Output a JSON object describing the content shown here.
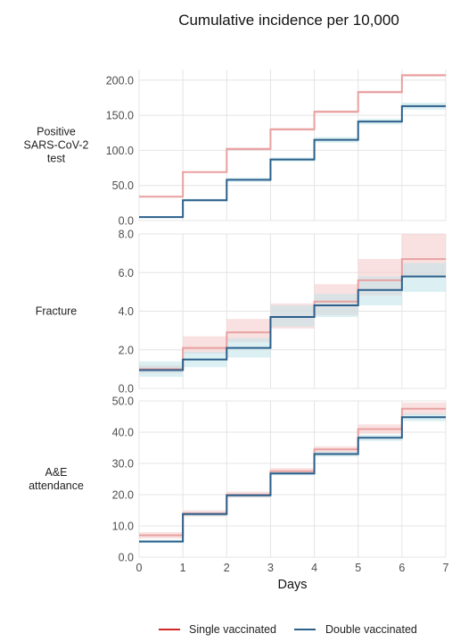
{
  "chart_data": {
    "type": "line",
    "title": "Cumulative incidence per 10,000",
    "xlabel": "Days",
    "x_ticks": [
      0,
      1,
      2,
      3,
      4,
      5,
      6,
      7
    ],
    "xlim": [
      0,
      7
    ],
    "grid": true,
    "legend_position": "bottom",
    "legend": [
      {
        "name": "Single vaccinated",
        "color": "#e8a1a1"
      },
      {
        "name": "Double vaccinated",
        "color": "#2c5f8a"
      }
    ],
    "panels": [
      {
        "label_lines": [
          "Positive",
          "SARS-CoV-2",
          "test"
        ],
        "ylim": [
          0,
          215
        ],
        "y_ticks": [
          0,
          50,
          100,
          150,
          200
        ],
        "y_tick_labels": [
          "0.0",
          "50.0",
          "100.0",
          "150.0",
          "200.0"
        ],
        "series": [
          {
            "name": "Single vaccinated",
            "steps": [
              34,
              69,
              102,
              130,
              155,
              183,
              207
            ],
            "ci_low": [
              33,
              68,
              100,
              128,
              153,
              181,
              205
            ],
            "ci_high": [
              35,
              70,
              104,
              132,
              157,
              185,
              209
            ]
          },
          {
            "name": "Double vaccinated",
            "steps": [
              5,
              29,
              58,
              87,
              115,
              141,
              163
            ],
            "ci_low": [
              4,
              27,
              55,
              84,
              111,
              137,
              158
            ],
            "ci_high": [
              6,
              31,
              61,
              90,
              119,
              145,
              168
            ]
          }
        ]
      },
      {
        "label_lines": [
          "Fracture"
        ],
        "ylim": [
          0,
          8
        ],
        "y_ticks": [
          0,
          2,
          4,
          6,
          8
        ],
        "y_tick_labels": [
          "0.0",
          "2.0",
          "4.0",
          "6.0",
          "8.0"
        ],
        "series": [
          {
            "name": "Single vaccinated",
            "steps": [
              1.0,
              2.1,
              2.9,
              3.7,
              4.5,
              5.6,
              6.7
            ],
            "ci_low": [
              0.8,
              1.8,
              2.4,
              3.1,
              3.8,
              4.8,
              5.8
            ],
            "ci_high": [
              1.2,
              2.7,
              3.6,
              4.4,
              5.4,
              6.7,
              8.0
            ]
          },
          {
            "name": "Double vaccinated",
            "steps": [
              0.95,
              1.5,
              2.1,
              3.7,
              4.3,
              5.1,
              5.8
            ],
            "ci_low": [
              0.6,
              1.1,
              1.6,
              3.2,
              3.7,
              4.3,
              5.0
            ],
            "ci_high": [
              1.4,
              1.9,
              2.6,
              4.3,
              4.9,
              5.8,
              6.5
            ]
          }
        ]
      },
      {
        "label_lines": [
          "A&E",
          "attendance"
        ],
        "ylim": [
          0,
          50
        ],
        "y_ticks": [
          0,
          10,
          20,
          30,
          40,
          50
        ],
        "y_tick_labels": [
          "0.0",
          "10.0",
          "20.0",
          "30.0",
          "40.0",
          "50.0"
        ],
        "series": [
          {
            "name": "Single vaccinated",
            "steps": [
              7.0,
              14.0,
              20.0,
              27.5,
              34.5,
              41.0,
              47.5
            ],
            "ci_low": [
              6.0,
              13.0,
              19.0,
              26.5,
              33.0,
              39.5,
              45.5
            ],
            "ci_high": [
              8.0,
              15.0,
              21.0,
              28.5,
              35.5,
              42.5,
              49.5
            ]
          },
          {
            "name": "Double vaccinated",
            "steps": [
              5.0,
              13.8,
              19.8,
              26.8,
              33.0,
              38.2,
              44.8
            ],
            "ci_low": [
              4.5,
              13.2,
              19.2,
              26.2,
              32.2,
              37.2,
              43.5
            ],
            "ci_high": [
              5.5,
              14.4,
              20.4,
              27.4,
              33.8,
              39.2,
              46.0
            ]
          }
        ]
      }
    ]
  }
}
